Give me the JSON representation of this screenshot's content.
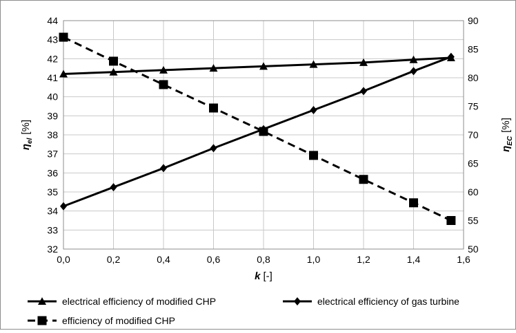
{
  "chart_data": {
    "type": "line",
    "x": [
      0,
      0.2,
      0.4,
      0.6,
      0.8,
      1.0,
      1.2,
      1.4,
      1.55
    ],
    "xlim": [
      0,
      1.6
    ],
    "xticks": [
      "0,0",
      "0,2",
      "0,4",
      "0,6",
      "0,8",
      "1,0",
      "1,2",
      "1,4",
      "1,6"
    ],
    "xlabel": {
      "symbol": "k",
      "unit": "[-]"
    },
    "ylabel_left": {
      "symbol": "η",
      "sub": "el",
      "unit": "[%]"
    },
    "ylabel_right": {
      "symbol": "η",
      "sub": "EC",
      "unit": "[%]"
    },
    "ylim_left": [
      32,
      44
    ],
    "ylim_right": [
      50,
      90
    ],
    "yticks_left": [
      "32",
      "33",
      "34",
      "35",
      "36",
      "37",
      "38",
      "39",
      "40",
      "41",
      "42",
      "43",
      "44"
    ],
    "yticks_right": [
      "50",
      "55",
      "60",
      "65",
      "70",
      "75",
      "80",
      "85",
      "90"
    ],
    "grid": true,
    "legend_position": "bottom",
    "series": [
      {
        "name": "electrical efficiency of modified CHP",
        "axis": "left",
        "marker": "triangle",
        "dash": "solid",
        "values": [
          41.2,
          41.3,
          41.4,
          41.5,
          41.6,
          41.7,
          41.8,
          41.95,
          42.05
        ]
      },
      {
        "name": "electrical efficiency of gas turbine",
        "axis": "left",
        "marker": "diamond",
        "dash": "solid",
        "values": [
          34.25,
          35.25,
          36.25,
          37.3,
          38.3,
          39.3,
          40.3,
          41.35,
          42.1
        ]
      },
      {
        "name": "efficiency of modified CHP",
        "axis": "right",
        "marker": "square",
        "dash": "dashed",
        "values": [
          87.1,
          82.9,
          78.8,
          74.7,
          70.6,
          66.4,
          62.2,
          58.1,
          55.0
        ]
      }
    ]
  },
  "colors": {
    "line": "#000000",
    "grid": "#c8c8c8",
    "frame": "#8c8c8c"
  }
}
